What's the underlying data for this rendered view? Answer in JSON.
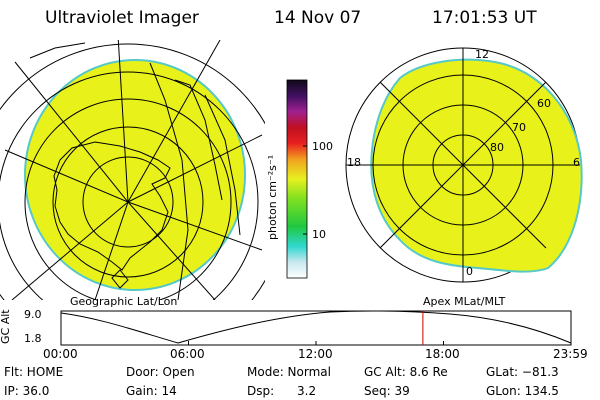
{
  "header": {
    "title": "Ultraviolet Imager",
    "date": "14 Nov 07",
    "time": "17:01:53 UT"
  },
  "colorbar": {
    "label": "photon cm⁻²s⁻¹",
    "tick_100": "100",
    "tick_10": "10"
  },
  "left_panel": {
    "caption": "Geographic Lat/Lon"
  },
  "right_panel": {
    "caption": "Apex MLat/MLT",
    "mlt_12": "12",
    "mlt_18": "18",
    "mlt_6": "6",
    "mlt_0": "0",
    "lat_60": "60",
    "lat_70": "70",
    "lat_80": "80"
  },
  "altitude_plot": {
    "ylabel": "GC Alt",
    "ymax": "9.0",
    "ymin": "1.8",
    "ticks": [
      "00:00",
      "06:00",
      "12:00",
      "18:00",
      "23:59"
    ],
    "current_time_fraction": 0.7096
  },
  "info": {
    "flt": "Flt: HOME",
    "ip": "IP: 36.0",
    "door": "Door: Open",
    "gain": "Gain: 14",
    "mode": "Mode: Normal",
    "dsp": "Dsp:      3.2",
    "gcalt": "GC Alt: 8.6 Re",
    "seq": "Seq: 39",
    "glat": "GLat: −81.3",
    "glon": "GLon: 134.5"
  },
  "colors": {
    "image_fill": "#e8f21a",
    "rim": "#33c8c8",
    "marker": "#cc0000"
  }
}
